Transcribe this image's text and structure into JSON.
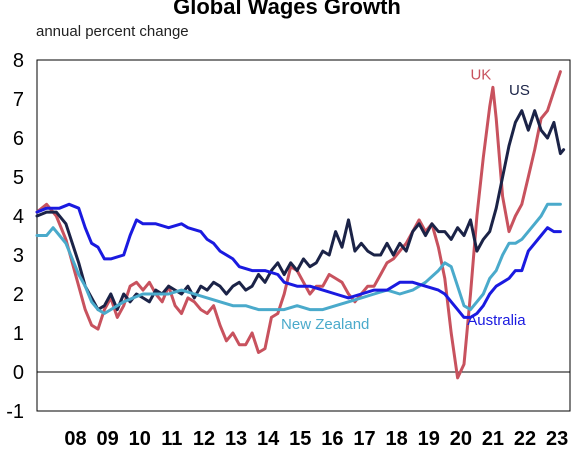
{
  "chart_data": {
    "type": "line",
    "title": "Global Wages Growth",
    "subtitle": "annual percent change",
    "xlabel": "",
    "ylabel": "",
    "ylim": [
      -1,
      8
    ],
    "xlim": [
      2007.3,
      2023.9
    ],
    "yticks": [
      -1,
      0,
      1,
      2,
      3,
      4,
      5,
      6,
      7,
      8
    ],
    "xtick_labels": [
      "08",
      "09",
      "10",
      "11",
      "12",
      "13",
      "14",
      "15",
      "16",
      "17",
      "18",
      "19",
      "20",
      "21",
      "22",
      "23"
    ],
    "grid": false,
    "zero_line": true,
    "series": [
      {
        "name": "UK",
        "color": "#c8525e",
        "label_pos": [
          2020.8,
          7.5
        ],
        "points": [
          [
            2007.3,
            4.1
          ],
          [
            2007.6,
            4.3
          ],
          [
            2007.9,
            4.0
          ],
          [
            2008.2,
            3.4
          ],
          [
            2008.5,
            2.5
          ],
          [
            2008.8,
            1.6
          ],
          [
            2009.0,
            1.2
          ],
          [
            2009.2,
            1.1
          ],
          [
            2009.4,
            1.6
          ],
          [
            2009.6,
            1.9
          ],
          [
            2009.8,
            1.4
          ],
          [
            2010.0,
            1.7
          ],
          [
            2010.2,
            2.2
          ],
          [
            2010.4,
            2.3
          ],
          [
            2010.6,
            2.1
          ],
          [
            2010.8,
            2.3
          ],
          [
            2011.0,
            2.0
          ],
          [
            2011.2,
            1.8
          ],
          [
            2011.4,
            2.2
          ],
          [
            2011.6,
            1.7
          ],
          [
            2011.8,
            1.5
          ],
          [
            2012.0,
            1.9
          ],
          [
            2012.2,
            1.8
          ],
          [
            2012.4,
            1.6
          ],
          [
            2012.6,
            1.5
          ],
          [
            2012.8,
            1.7
          ],
          [
            2013.0,
            1.2
          ],
          [
            2013.2,
            0.8
          ],
          [
            2013.4,
            1.0
          ],
          [
            2013.6,
            0.7
          ],
          [
            2013.8,
            0.7
          ],
          [
            2014.0,
            1.0
          ],
          [
            2014.2,
            0.5
          ],
          [
            2014.4,
            0.6
          ],
          [
            2014.6,
            1.4
          ],
          [
            2014.8,
            1.5
          ],
          [
            2015.0,
            2.0
          ],
          [
            2015.2,
            2.7
          ],
          [
            2015.4,
            2.6
          ],
          [
            2015.6,
            2.3
          ],
          [
            2015.8,
            2.0
          ],
          [
            2016.0,
            2.2
          ],
          [
            2016.2,
            2.2
          ],
          [
            2016.4,
            2.5
          ],
          [
            2016.6,
            2.4
          ],
          [
            2016.8,
            2.3
          ],
          [
            2017.0,
            2.0
          ],
          [
            2017.2,
            1.8
          ],
          [
            2017.4,
            2.0
          ],
          [
            2017.6,
            2.2
          ],
          [
            2017.8,
            2.2
          ],
          [
            2018.0,
            2.5
          ],
          [
            2018.2,
            2.8
          ],
          [
            2018.4,
            2.9
          ],
          [
            2018.6,
            3.1
          ],
          [
            2018.8,
            3.3
          ],
          [
            2019.0,
            3.6
          ],
          [
            2019.2,
            3.9
          ],
          [
            2019.4,
            3.6
          ],
          [
            2019.6,
            3.8
          ],
          [
            2019.8,
            3.2
          ],
          [
            2020.0,
            2.4
          ],
          [
            2020.2,
            1.0
          ],
          [
            2020.4,
            -0.15
          ],
          [
            2020.6,
            0.2
          ],
          [
            2020.8,
            2.0
          ],
          [
            2021.0,
            4.0
          ],
          [
            2021.2,
            5.5
          ],
          [
            2021.4,
            6.8
          ],
          [
            2021.5,
            7.3
          ],
          [
            2021.6,
            6.5
          ],
          [
            2021.8,
            4.5
          ],
          [
            2022.0,
            3.6
          ],
          [
            2022.2,
            4.0
          ],
          [
            2022.4,
            4.3
          ],
          [
            2022.6,
            5.0
          ],
          [
            2022.8,
            5.7
          ],
          [
            2023.0,
            6.5
          ],
          [
            2023.2,
            6.7
          ],
          [
            2023.4,
            7.2
          ],
          [
            2023.6,
            7.7
          ]
        ]
      },
      {
        "name": "US",
        "color": "#1b2347",
        "label_pos": [
          2022.0,
          7.1
        ],
        "points": [
          [
            2007.3,
            4.0
          ],
          [
            2007.6,
            4.1
          ],
          [
            2007.9,
            4.1
          ],
          [
            2008.2,
            3.8
          ],
          [
            2008.4,
            3.3
          ],
          [
            2008.6,
            2.8
          ],
          [
            2008.8,
            2.2
          ],
          [
            2009.0,
            1.9
          ],
          [
            2009.2,
            1.6
          ],
          [
            2009.4,
            1.7
          ],
          [
            2009.6,
            2.0
          ],
          [
            2009.8,
            1.6
          ],
          [
            2010.0,
            2.0
          ],
          [
            2010.2,
            1.8
          ],
          [
            2010.4,
            2.0
          ],
          [
            2010.6,
            1.9
          ],
          [
            2010.8,
            1.8
          ],
          [
            2011.0,
            2.1
          ],
          [
            2011.2,
            2.0
          ],
          [
            2011.4,
            2.2
          ],
          [
            2011.6,
            2.1
          ],
          [
            2011.8,
            2.0
          ],
          [
            2012.0,
            2.2
          ],
          [
            2012.2,
            1.9
          ],
          [
            2012.4,
            2.2
          ],
          [
            2012.6,
            2.1
          ],
          [
            2012.8,
            2.3
          ],
          [
            2013.0,
            2.2
          ],
          [
            2013.2,
            2.0
          ],
          [
            2013.4,
            2.2
          ],
          [
            2013.6,
            2.3
          ],
          [
            2013.8,
            2.1
          ],
          [
            2014.0,
            2.2
          ],
          [
            2014.2,
            2.5
          ],
          [
            2014.4,
            2.3
          ],
          [
            2014.6,
            2.6
          ],
          [
            2014.8,
            2.8
          ],
          [
            2015.0,
            2.5
          ],
          [
            2015.2,
            2.8
          ],
          [
            2015.4,
            2.6
          ],
          [
            2015.6,
            2.9
          ],
          [
            2015.8,
            2.7
          ],
          [
            2016.0,
            2.8
          ],
          [
            2016.2,
            3.1
          ],
          [
            2016.4,
            3.0
          ],
          [
            2016.6,
            3.6
          ],
          [
            2016.8,
            3.2
          ],
          [
            2017.0,
            3.9
          ],
          [
            2017.1,
            3.5
          ],
          [
            2017.2,
            3.1
          ],
          [
            2017.4,
            3.3
          ],
          [
            2017.6,
            3.1
          ],
          [
            2017.8,
            3.0
          ],
          [
            2018.0,
            3.0
          ],
          [
            2018.2,
            3.3
          ],
          [
            2018.4,
            3.0
          ],
          [
            2018.6,
            3.3
          ],
          [
            2018.8,
            3.1
          ],
          [
            2019.0,
            3.6
          ],
          [
            2019.2,
            3.8
          ],
          [
            2019.4,
            3.5
          ],
          [
            2019.6,
            3.8
          ],
          [
            2019.8,
            3.6
          ],
          [
            2020.0,
            3.6
          ],
          [
            2020.2,
            3.4
          ],
          [
            2020.4,
            3.7
          ],
          [
            2020.6,
            3.5
          ],
          [
            2020.8,
            3.9
          ],
          [
            2021.0,
            3.1
          ],
          [
            2021.2,
            3.4
          ],
          [
            2021.4,
            3.6
          ],
          [
            2021.6,
            4.2
          ],
          [
            2021.8,
            5.0
          ],
          [
            2022.0,
            5.8
          ],
          [
            2022.2,
            6.4
          ],
          [
            2022.4,
            6.7
          ],
          [
            2022.6,
            6.2
          ],
          [
            2022.8,
            6.7
          ],
          [
            2023.0,
            6.2
          ],
          [
            2023.2,
            6.0
          ],
          [
            2023.4,
            6.4
          ],
          [
            2023.6,
            5.6
          ],
          [
            2023.7,
            5.7
          ]
        ]
      },
      {
        "name": "New Zealand",
        "color": "#4aaacb",
        "label_pos": [
          2014.9,
          1.1
        ],
        "points": [
          [
            2007.3,
            3.5
          ],
          [
            2007.6,
            3.5
          ],
          [
            2007.8,
            3.7
          ],
          [
            2008.0,
            3.5
          ],
          [
            2008.2,
            3.3
          ],
          [
            2008.4,
            2.9
          ],
          [
            2008.6,
            2.5
          ],
          [
            2008.8,
            2.2
          ],
          [
            2009.0,
            1.8
          ],
          [
            2009.2,
            1.6
          ],
          [
            2009.4,
            1.5
          ],
          [
            2009.6,
            1.6
          ],
          [
            2009.8,
            1.7
          ],
          [
            2010.0,
            1.8
          ],
          [
            2010.3,
            1.9
          ],
          [
            2010.6,
            2.0
          ],
          [
            2011.0,
            2.0
          ],
          [
            2011.4,
            2.0
          ],
          [
            2011.8,
            2.1
          ],
          [
            2012.2,
            2.0
          ],
          [
            2012.6,
            1.9
          ],
          [
            2013.0,
            1.8
          ],
          [
            2013.4,
            1.7
          ],
          [
            2013.8,
            1.7
          ],
          [
            2014.2,
            1.6
          ],
          [
            2014.6,
            1.6
          ],
          [
            2015.0,
            1.6
          ],
          [
            2015.4,
            1.7
          ],
          [
            2015.8,
            1.6
          ],
          [
            2016.2,
            1.6
          ],
          [
            2016.6,
            1.7
          ],
          [
            2017.0,
            1.8
          ],
          [
            2017.4,
            1.9
          ],
          [
            2017.8,
            2.0
          ],
          [
            2018.2,
            2.1
          ],
          [
            2018.6,
            2.0
          ],
          [
            2019.0,
            2.1
          ],
          [
            2019.4,
            2.3
          ],
          [
            2019.8,
            2.6
          ],
          [
            2020.0,
            2.8
          ],
          [
            2020.2,
            2.7
          ],
          [
            2020.4,
            2.2
          ],
          [
            2020.6,
            1.7
          ],
          [
            2020.8,
            1.6
          ],
          [
            2021.0,
            1.8
          ],
          [
            2021.2,
            2.0
          ],
          [
            2021.4,
            2.4
          ],
          [
            2021.6,
            2.6
          ],
          [
            2021.8,
            3.0
          ],
          [
            2022.0,
            3.3
          ],
          [
            2022.2,
            3.3
          ],
          [
            2022.4,
            3.4
          ],
          [
            2022.6,
            3.6
          ],
          [
            2022.8,
            3.8
          ],
          [
            2023.0,
            4.0
          ],
          [
            2023.2,
            4.3
          ],
          [
            2023.4,
            4.3
          ],
          [
            2023.6,
            4.3
          ]
        ]
      },
      {
        "name": "Australia",
        "color": "#1a1ae0",
        "label_pos": [
          2020.7,
          1.2
        ],
        "points": [
          [
            2007.3,
            4.1
          ],
          [
            2007.6,
            4.2
          ],
          [
            2008.0,
            4.2
          ],
          [
            2008.3,
            4.3
          ],
          [
            2008.6,
            4.2
          ],
          [
            2008.8,
            3.7
          ],
          [
            2009.0,
            3.3
          ],
          [
            2009.2,
            3.2
          ],
          [
            2009.4,
            2.9
          ],
          [
            2009.6,
            2.9
          ],
          [
            2010.0,
            3.0
          ],
          [
            2010.2,
            3.5
          ],
          [
            2010.4,
            3.9
          ],
          [
            2010.6,
            3.8
          ],
          [
            2011.0,
            3.8
          ],
          [
            2011.4,
            3.7
          ],
          [
            2011.8,
            3.8
          ],
          [
            2012.0,
            3.7
          ],
          [
            2012.4,
            3.6
          ],
          [
            2012.6,
            3.4
          ],
          [
            2012.8,
            3.3
          ],
          [
            2013.0,
            3.1
          ],
          [
            2013.4,
            2.9
          ],
          [
            2013.6,
            2.7
          ],
          [
            2014.0,
            2.6
          ],
          [
            2014.4,
            2.6
          ],
          [
            2014.8,
            2.5
          ],
          [
            2015.0,
            2.3
          ],
          [
            2015.4,
            2.2
          ],
          [
            2015.8,
            2.2
          ],
          [
            2016.2,
            2.1
          ],
          [
            2016.6,
            2.0
          ],
          [
            2017.0,
            1.9
          ],
          [
            2017.4,
            2.0
          ],
          [
            2017.8,
            2.1
          ],
          [
            2018.2,
            2.1
          ],
          [
            2018.6,
            2.3
          ],
          [
            2019.0,
            2.3
          ],
          [
            2019.4,
            2.2
          ],
          [
            2019.8,
            2.1
          ],
          [
            2020.0,
            2.0
          ],
          [
            2020.2,
            1.8
          ],
          [
            2020.4,
            1.6
          ],
          [
            2020.6,
            1.4
          ],
          [
            2020.8,
            1.4
          ],
          [
            2021.0,
            1.5
          ],
          [
            2021.2,
            1.7
          ],
          [
            2021.4,
            2.0
          ],
          [
            2021.6,
            2.2
          ],
          [
            2021.8,
            2.3
          ],
          [
            2022.0,
            2.4
          ],
          [
            2022.2,
            2.6
          ],
          [
            2022.4,
            2.6
          ],
          [
            2022.6,
            3.1
          ],
          [
            2022.8,
            3.3
          ],
          [
            2023.0,
            3.5
          ],
          [
            2023.2,
            3.7
          ],
          [
            2023.4,
            3.6
          ],
          [
            2023.6,
            3.6
          ]
        ]
      }
    ]
  }
}
